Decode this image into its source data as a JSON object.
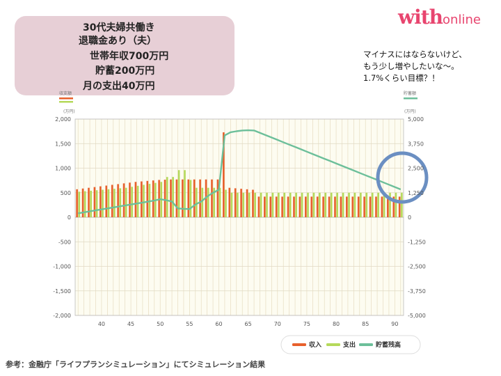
{
  "logo": {
    "brand": "with",
    "suffix": "online"
  },
  "profile": {
    "lines": [
      "30代夫婦共働き",
      "退職金あり（夫）",
      "世帯年収700万円",
      "貯蓄200万円",
      "月の支出40万円"
    ]
  },
  "comment": {
    "lines": [
      "マイナスにはならないけど、",
      "もう少し増やしたいな〜。",
      "1.7%くらい目標？！"
    ]
  },
  "source": "参考：金融庁「ライフプランシミュレーション」にてシミュレーション結果",
  "colors": {
    "income": "#e8602c",
    "expense": "#b5d95a",
    "savings": "#6cbf9a",
    "highlight": "#6b8fc2"
  },
  "chart_data": {
    "type": "bar",
    "title": "",
    "left_axis": {
      "label": "収支額",
      "unit": "(万円)",
      "ylim": [
        -2000,
        2000
      ],
      "ticks": [
        "2,000",
        "1,500",
        "1,000",
        "500",
        "0",
        "-500",
        "-1,000",
        "-1,500",
        "-2,000"
      ]
    },
    "right_axis": {
      "label": "貯蓄額",
      "unit": "(万円)",
      "ylim": [
        -5000,
        5000
      ],
      "ticks": [
        "5,000",
        "3,750",
        "2,500",
        "1,250",
        "0",
        "-1,250",
        "-2,500",
        "-3,750",
        "-5,000"
      ]
    },
    "x_ticks": [
      "40",
      "45",
      "50",
      "55",
      "60",
      "65",
      "70",
      "75",
      "80",
      "85",
      "90"
    ],
    "x": [
      36,
      37,
      38,
      39,
      40,
      41,
      42,
      43,
      44,
      45,
      46,
      47,
      48,
      49,
      50,
      51,
      52,
      53,
      54,
      55,
      56,
      57,
      58,
      59,
      60,
      61,
      62,
      63,
      64,
      65,
      66,
      67,
      68,
      69,
      70,
      71,
      72,
      73,
      74,
      75,
      76,
      77,
      78,
      79,
      80,
      81,
      82,
      83,
      84,
      85,
      86,
      87,
      88,
      89,
      90,
      91
    ],
    "legend_position": "bottom-right",
    "grid": true,
    "series": [
      {
        "name": "収入",
        "type": "bar",
        "axis": "left",
        "values": [
          570,
          585,
          600,
          615,
          630,
          645,
          660,
          675,
          690,
          705,
          720,
          730,
          740,
          750,
          760,
          765,
          770,
          770,
          770,
          770,
          770,
          770,
          770,
          770,
          770,
          1730,
          600,
          590,
          580,
          570,
          560,
          420,
          420,
          420,
          420,
          420,
          420,
          420,
          420,
          420,
          420,
          420,
          420,
          420,
          420,
          420,
          420,
          420,
          420,
          420,
          420,
          420,
          420,
          420,
          420,
          420
        ]
      },
      {
        "name": "支出",
        "type": "bar",
        "axis": "left",
        "values": [
          520,
          530,
          540,
          550,
          560,
          570,
          580,
          590,
          600,
          620,
          640,
          660,
          680,
          700,
          720,
          820,
          820,
          960,
          960,
          760,
          600,
          600,
          600,
          600,
          600,
          560,
          500,
          500,
          500,
          500,
          500,
          500,
          500,
          500,
          500,
          500,
          500,
          500,
          500,
          500,
          500,
          500,
          500,
          500,
          500,
          500,
          500,
          500,
          500,
          500,
          500,
          500,
          500,
          500,
          500,
          500
        ]
      },
      {
        "name": "貯蓄残高",
        "type": "line",
        "axis": "right",
        "values": [
          200,
          250,
          300,
          350,
          400,
          450,
          500,
          550,
          600,
          650,
          700,
          750,
          800,
          850,
          920,
          870,
          800,
          450,
          430,
          420,
          650,
          800,
          1050,
          1250,
          1400,
          4170,
          4330,
          4380,
          4420,
          4430,
          4420,
          4300,
          4180,
          4060,
          3940,
          3820,
          3700,
          3580,
          3460,
          3340,
          3220,
          3100,
          2980,
          2860,
          2740,
          2620,
          2500,
          2380,
          2260,
          2140,
          2020,
          1900,
          1780,
          1660,
          1540,
          1420
        ]
      }
    ]
  }
}
